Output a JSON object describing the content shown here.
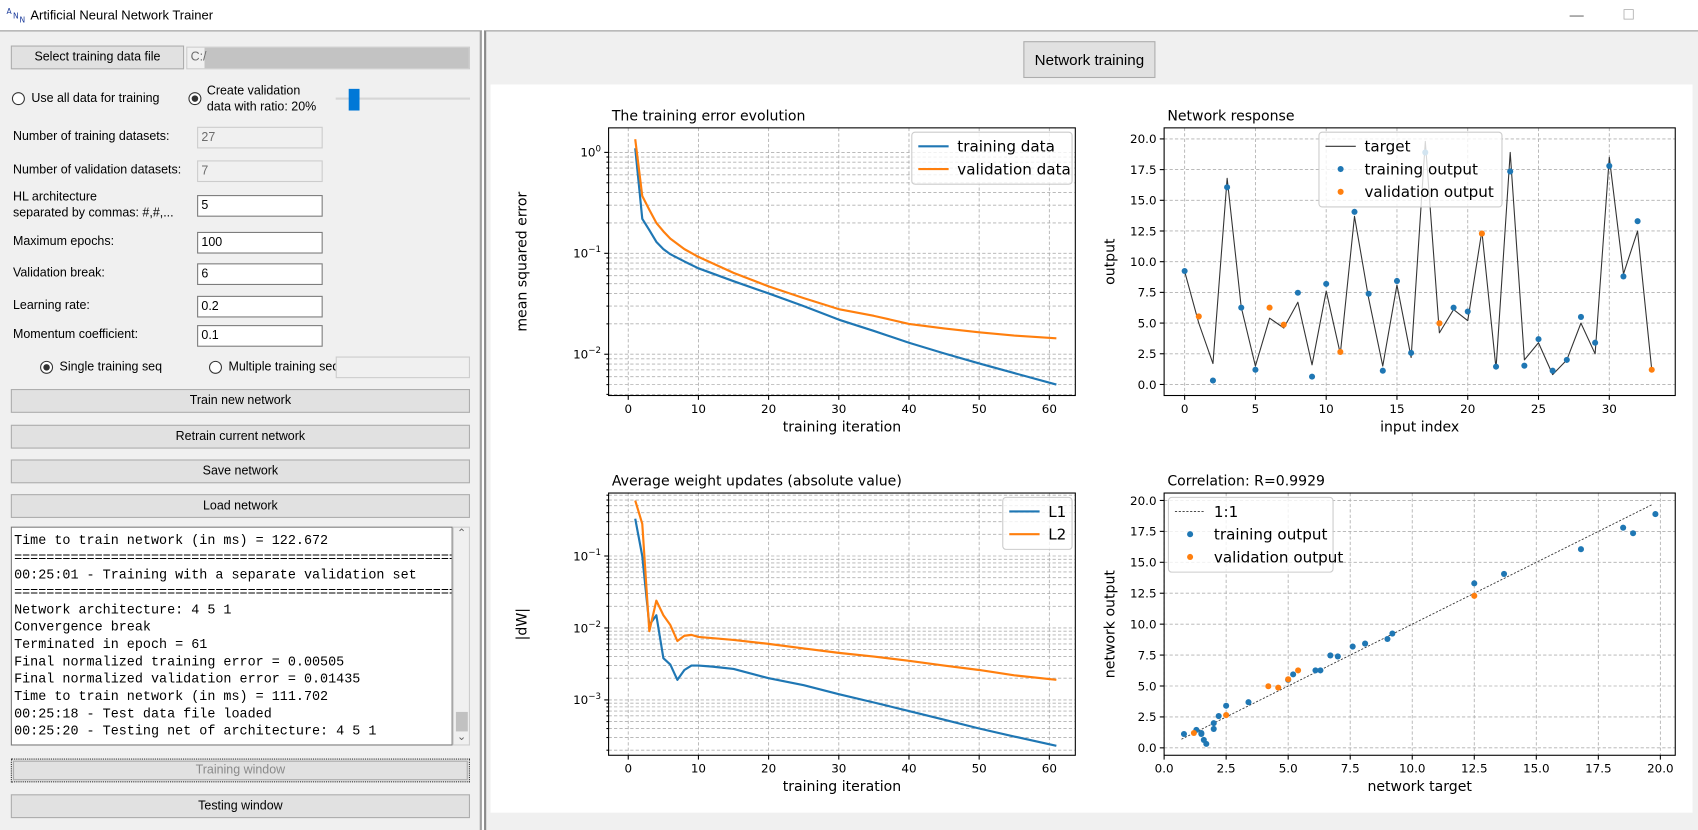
{
  "window": {
    "title": "Artificial Neural Network Trainer",
    "minimize": "—",
    "maximize": "☐"
  },
  "left": {
    "select_file_label": "Select training data file",
    "file_path": "C:/",
    "use_all_label": "Use all data for training",
    "use_all_checked": false,
    "create_validation_line1": "Create validation",
    "create_validation_line2": "data with ratio: 20%",
    "create_validation_checked": true,
    "ratio_percent": 20,
    "fields": [
      {
        "label": "Number of training datasets:",
        "value": "27",
        "disabled": true
      },
      {
        "label": "Number of validation datasets:",
        "value": "7",
        "disabled": true
      },
      {
        "label": "HL architecture",
        "label2": "separated by commas: #,#,...",
        "value": "5",
        "disabled": false
      },
      {
        "label": "Maximum epochs:",
        "value": "100",
        "disabled": false
      },
      {
        "label": "Validation break:",
        "value": "6",
        "disabled": false
      },
      {
        "label": "Learning rate:",
        "value": "0.2",
        "disabled": false
      },
      {
        "label": "Momentum coefficient:",
        "value": "0.1",
        "disabled": false
      }
    ],
    "single_seq_label": "Single training seq",
    "single_seq_checked": true,
    "multiple_seq_label": "Multiple training seq:",
    "multiple_seq_value": "",
    "buttons": [
      "Train new network",
      "Retrain current network",
      "Save network",
      "Load network"
    ],
    "log": [
      "Time to train network (in ms) = 122.672",
      "===========================================================",
      "00:25:01 - Training with a separate validation set",
      "===========================================================",
      "Network architecture: 4 5 1",
      "Convergence break",
      "Terminated in epoch = 61",
      "Final normalized training error = 0.00505",
      "Final normalized validation error = 0.01435",
      "Time to train network (in ms) = 111.702",
      "00:25:18 - Test data file loaded",
      "00:25:20 - Testing net of architecture: 4 5 1"
    ],
    "training_window_label": "Training window",
    "testing_window_label": "Testing window"
  },
  "right": {
    "network_training_label": "Network training"
  },
  "colors": {
    "training": "#1f77b4",
    "validation": "#ff7f0e",
    "target": "#333333",
    "accent": "#0078d7"
  },
  "chart_data": [
    {
      "type": "line",
      "title": "The training error evolution",
      "xlabel": "training iteration",
      "ylabel": "mean squared error",
      "yscale": "log",
      "xlim": [
        -2.8,
        63.7
      ],
      "ylim": [
        0.0039,
        1.75
      ],
      "grid": true,
      "legend": "top-right",
      "xticks": [
        0,
        10,
        20,
        30,
        40,
        50,
        60
      ],
      "yticks": [
        {
          "value": 1,
          "base": "10",
          "exp": "0"
        },
        {
          "value": 0.1,
          "base": "10",
          "exp": "−1"
        },
        {
          "value": 0.01,
          "base": "10",
          "exp": "−2"
        }
      ],
      "series": [
        {
          "name": "training data",
          "x": [
            1,
            2,
            3,
            4,
            5,
            6,
            8,
            10,
            15,
            20,
            25,
            30,
            35,
            40,
            45,
            50,
            55,
            61
          ],
          "y": [
            1.1,
            0.22,
            0.17,
            0.13,
            0.11,
            0.098,
            0.083,
            0.071,
            0.053,
            0.04,
            0.03,
            0.022,
            0.017,
            0.013,
            0.0102,
            0.0081,
            0.0065,
            0.005
          ]
        },
        {
          "name": "validation data",
          "x": [
            1,
            2,
            3,
            4,
            5,
            6,
            8,
            10,
            15,
            20,
            25,
            30,
            35,
            40,
            45,
            50,
            55,
            61
          ],
          "y": [
            1.35,
            0.37,
            0.27,
            0.2,
            0.165,
            0.14,
            0.11,
            0.092,
            0.064,
            0.047,
            0.036,
            0.028,
            0.024,
            0.02,
            0.018,
            0.0165,
            0.0153,
            0.0144
          ]
        }
      ]
    },
    {
      "type": "line+scatter",
      "title": "Network response",
      "xlabel": "input index",
      "ylabel": "output",
      "xlim": [
        -1.45,
        34.66
      ],
      "ylim": [
        -0.9,
        20.9
      ],
      "grid": true,
      "legend": "top-center",
      "xticks": [
        0,
        5,
        10,
        15,
        20,
        25,
        30
      ],
      "yticks": [
        "0.0",
        "2.5",
        "5.0",
        "7.5",
        "10.0",
        "12.5",
        "15.0",
        "17.5",
        "20.0"
      ],
      "target": {
        "name": "target",
        "y": [
          9.2,
          5.0,
          1.7,
          16.8,
          6.3,
          1.5,
          5.4,
          4.6,
          6.7,
          1.6,
          7.6,
          2.5,
          13.7,
          7.0,
          1.5,
          8.1,
          2.2,
          19.8,
          4.2,
          6.1,
          5.2,
          12.5,
          1.3,
          18.9,
          2.0,
          3.4,
          0.8,
          2.0,
          5.0,
          2.5,
          18.5,
          9.0,
          12.5,
          1.2
        ]
      },
      "training_output": {
        "name": "training output",
        "x": [
          0,
          2,
          3,
          4,
          5,
          8,
          9,
          10,
          12,
          13,
          14,
          15,
          16,
          17,
          19,
          20,
          22,
          23,
          24,
          25,
          26,
          27,
          28,
          29,
          30,
          31,
          32
        ],
        "y": [
          9.24,
          0.32,
          16.06,
          6.26,
          1.2,
          7.47,
          0.64,
          8.19,
          14.06,
          7.39,
          1.12,
          8.43,
          2.57,
          18.9,
          6.26,
          5.94,
          1.45,
          17.35,
          1.53,
          3.69,
          1.12,
          2.0,
          5.5,
          3.4,
          17.8,
          8.8,
          13.3
        ]
      },
      "validation_output": {
        "name": "validation output",
        "x": [
          1,
          6,
          7,
          11,
          18,
          21,
          33
        ],
        "y": [
          5.54,
          6.26,
          4.87,
          2.65,
          4.98,
          12.29,
          1.2
        ]
      }
    },
    {
      "type": "line",
      "title": "Average weight updates (absolute value)",
      "xlabel": "training iteration",
      "ylabel": "|dW|",
      "yscale": "log",
      "xlim": [
        -2.8,
        63.7
      ],
      "ylim": [
        0.00017,
        0.75
      ],
      "grid": true,
      "legend": "top-right",
      "xticks": [
        0,
        10,
        20,
        30,
        40,
        50,
        60
      ],
      "yticks": [
        {
          "value": 0.1,
          "base": "10",
          "exp": "−1"
        },
        {
          "value": 0.01,
          "base": "10",
          "exp": "−2"
        },
        {
          "value": 0.001,
          "base": "10",
          "exp": "−3"
        }
      ],
      "series": [
        {
          "name": "L1",
          "x": [
            1,
            2,
            3,
            4,
            5,
            6,
            7,
            8,
            9,
            10,
            12,
            15,
            20,
            25,
            30,
            35,
            40,
            45,
            50,
            55,
            61
          ],
          "y": [
            0.33,
            0.1,
            0.011,
            0.015,
            0.0038,
            0.0031,
            0.0019,
            0.0026,
            0.003,
            0.003,
            0.0029,
            0.0027,
            0.002,
            0.0016,
            0.0012,
            0.00092,
            0.0007,
            0.00053,
            0.0004,
            0.00031,
            0.00023
          ]
        },
        {
          "name": "L2",
          "x": [
            1,
            2,
            3,
            4,
            5,
            6,
            7,
            8,
            9,
            10,
            15,
            20,
            25,
            30,
            35,
            40,
            45,
            50,
            55,
            61
          ],
          "y": [
            0.59,
            0.28,
            0.009,
            0.024,
            0.015,
            0.011,
            0.0066,
            0.0078,
            0.008,
            0.0075,
            0.0068,
            0.006,
            0.0052,
            0.0045,
            0.004,
            0.0035,
            0.003,
            0.0026,
            0.0022,
            0.0019
          ]
        }
      ]
    },
    {
      "type": "scatter",
      "title": "Correlation: R=0.9929",
      "xlabel": "network target",
      "ylabel": "network output",
      "xlim": [
        0.0,
        20.6
      ],
      "ylim": [
        -0.6,
        20.6
      ],
      "grid": true,
      "legend": "top-left",
      "xticks": [
        "0.0",
        "2.5",
        "5.0",
        "7.5",
        "10.0",
        "12.5",
        "15.0",
        "17.5",
        "20.0"
      ],
      "yticks": [
        "0.0",
        "2.5",
        "5.0",
        "7.5",
        "10.0",
        "12.5",
        "15.0",
        "17.5",
        "20.0"
      ],
      "identity": {
        "name": "1:1",
        "x": [
          0.7,
          19.7
        ]
      },
      "training_output": {
        "name": "training output",
        "x": [
          9.2,
          1.7,
          16.8,
          6.3,
          1.5,
          6.7,
          1.6,
          7.6,
          13.7,
          7.0,
          1.5,
          8.1,
          2.2,
          19.8,
          6.1,
          5.2,
          1.3,
          18.9,
          2.0,
          3.4,
          0.8,
          2.0,
          5.0,
          2.5,
          18.5,
          9.0,
          12.5
        ],
        "y": [
          9.24,
          0.32,
          16.06,
          6.26,
          1.2,
          7.47,
          0.64,
          8.19,
          14.06,
          7.39,
          1.12,
          8.43,
          2.57,
          18.9,
          6.26,
          5.94,
          1.45,
          17.35,
          1.53,
          3.69,
          1.12,
          2.0,
          5.5,
          3.4,
          17.8,
          8.8,
          13.3
        ]
      },
      "validation_output": {
        "name": "validation output",
        "x": [
          5.0,
          5.4,
          4.6,
          2.5,
          4.2,
          12.5,
          1.2
        ],
        "y": [
          5.54,
          6.26,
          4.87,
          2.65,
          4.98,
          12.29,
          1.2
        ]
      }
    }
  ]
}
